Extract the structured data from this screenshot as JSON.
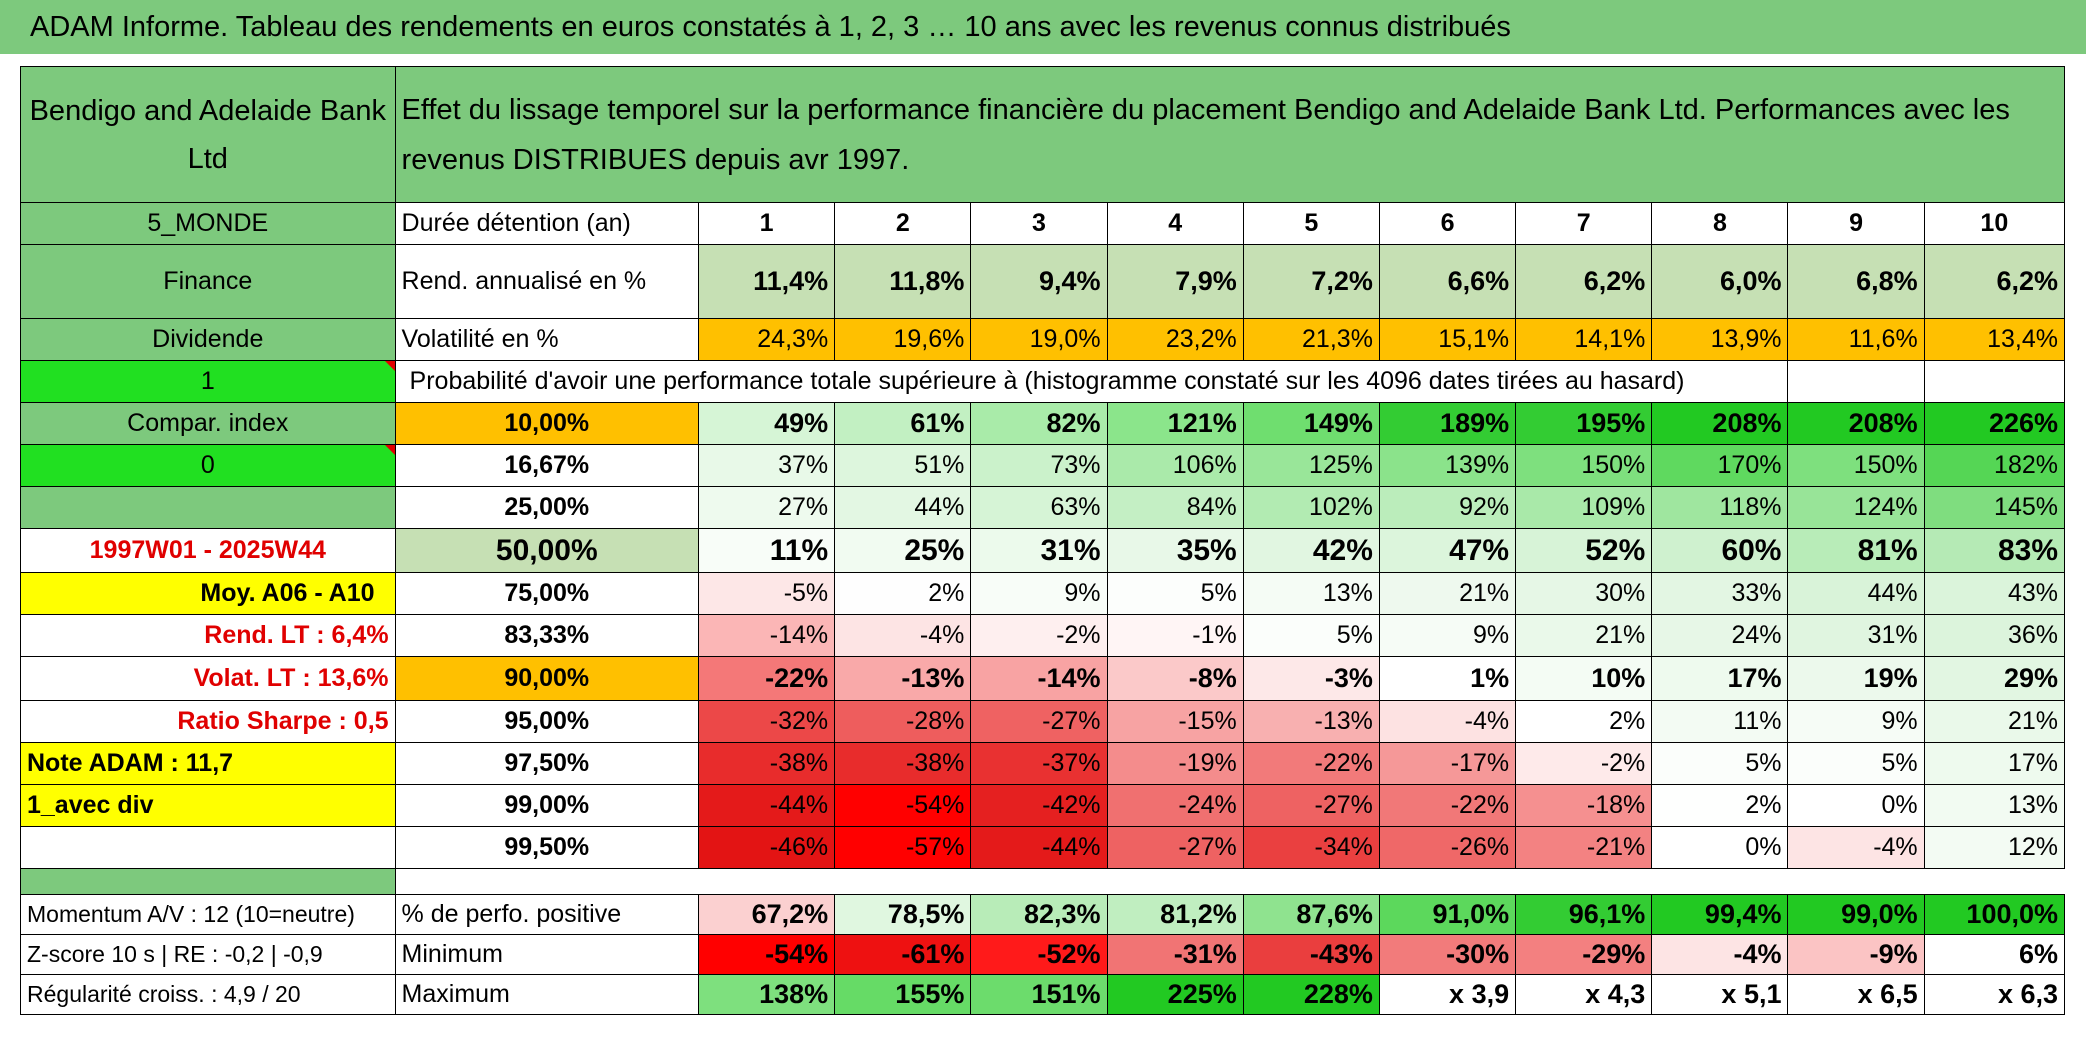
{
  "title": "ADAM Informe. Tableau des rendements en euros constatés à 1, 2, 3 … 10 ans avec les revenus connus distribués",
  "header": {
    "name": "Bendigo and Adelaide Bank Ltd",
    "description": "Effet du lissage temporel sur la performance financière du placement Bendigo and Adelaide Bank Ltd. Performances avec les revenus DISTRIBUES depuis avr 1997."
  },
  "left": {
    "region": "5_MONDE",
    "sector": "Finance",
    "type": "Dividende",
    "val1": "1",
    "compar": "Compar. index",
    "val0": "0",
    "period": "1997W01 - 2025W44",
    "moy": "Moy. A06 - A10",
    "rend_lt": "Rend. LT :   6,4%",
    "volat_lt": "Volat. LT :   13,6%",
    "sharpe": "Ratio Sharpe :   0,5",
    "note": "Note ADAM : 11,7",
    "avec_div": "1_avec div",
    "momentum": "Momentum A/V : 12 (10=neutre)",
    "zscore": "Z-score 10 s | RE : -0,2 | -0,9",
    "regularite": "Régularité croiss. : 4,9 / 20"
  },
  "labels": {
    "duree": "Durée détention (an)",
    "rend": "Rend. annualisé en %",
    "volat": "Volatilité en %",
    "proba": "Probabilité d'avoir une performance totale supérieure à (histogramme constaté sur les 4096 dates tirées au hasard)",
    "positive": "% de perfo. positive",
    "minimum": "Minimum",
    "maximum": "Maximum"
  },
  "years": [
    "1",
    "2",
    "3",
    "4",
    "5",
    "6",
    "7",
    "8",
    "9",
    "10"
  ],
  "rend": [
    "11,4%",
    "11,8%",
    "9,4%",
    "7,9%",
    "7,2%",
    "6,6%",
    "6,2%",
    "6,0%",
    "6,8%",
    "6,2%"
  ],
  "volat": [
    "24,3%",
    "19,6%",
    "19,0%",
    "23,2%",
    "21,3%",
    "15,1%",
    "14,1%",
    "13,9%",
    "11,6%",
    "13,4%"
  ],
  "percentiles": [
    {
      "label": "10,00%",
      "values": [
        "49%",
        "61%",
        "82%",
        "121%",
        "149%",
        "189%",
        "195%",
        "208%",
        "208%",
        "226%"
      ],
      "colors": [
        "#d6f5d6",
        "#c2f0c2",
        "#a9eba9",
        "#8be58b",
        "#6fde6f",
        "#33cc33",
        "#33cc33",
        "#22c922",
        "#22c922",
        "#22c922"
      ]
    },
    {
      "label": "16,67%",
      "values": [
        "37%",
        "51%",
        "73%",
        "106%",
        "125%",
        "139%",
        "150%",
        "170%",
        "150%",
        "182%"
      ],
      "colors": [
        "#e8f9e8",
        "#ddf6dd",
        "#cbf2cb",
        "#aaeaaa",
        "#99e699",
        "#8be38b",
        "#7ee07e",
        "#5fd95f",
        "#7ee07e",
        "#55d655"
      ]
    },
    {
      "label": "25,00%",
      "values": [
        "27%",
        "44%",
        "63%",
        "84%",
        "102%",
        "92%",
        "109%",
        "118%",
        "124%",
        "145%"
      ],
      "colors": [
        "#eefaee",
        "#e3f7e3",
        "#d6f4d6",
        "#c4efc4",
        "#b2ebb2",
        "#bbedbb",
        "#a9e9a9",
        "#9fe69f",
        "#98e498",
        "#7fdd7f"
      ]
    },
    {
      "label": "50,00%",
      "values": [
        "11%",
        "25%",
        "31%",
        "35%",
        "42%",
        "47%",
        "52%",
        "60%",
        "81%",
        "83%"
      ],
      "colors": [
        "#f8fdf8",
        "#f1fbf1",
        "#ecfaec",
        "#e8f8e8",
        "#e1f6e1",
        "#dcf5dc",
        "#d7f3d7",
        "#cff1cf",
        "#b8ecb8",
        "#b5eab5"
      ]
    },
    {
      "label": "75,00%",
      "values": [
        "-5%",
        "2%",
        "9%",
        "5%",
        "13%",
        "21%",
        "30%",
        "33%",
        "44%",
        "43%"
      ],
      "colors": [
        "#fde7e7",
        "#fefefe",
        "#f8fdf8",
        "#fcfefc",
        "#f5fcf5",
        "#eef9ee",
        "#e6f7e6",
        "#e3f6e3",
        "#d9f3d9",
        "#dbf4db"
      ]
    },
    {
      "label": "83,33%",
      "values": [
        "-14%",
        "-4%",
        "-2%",
        "-1%",
        "5%",
        "9%",
        "21%",
        "24%",
        "31%",
        "36%"
      ],
      "colors": [
        "#fbb6b6",
        "#fde4e4",
        "#feefef",
        "#fff5f5",
        "#fbfefb",
        "#f6fcf6",
        "#eaf9ea",
        "#e7f7e7",
        "#e0f5e0",
        "#dcf4dc"
      ]
    },
    {
      "label": "90,00%",
      "values": [
        "-22%",
        "-13%",
        "-14%",
        "-8%",
        "-3%",
        "1%",
        "10%",
        "17%",
        "19%",
        "29%"
      ],
      "colors": [
        "#f47878",
        "#f9a9a9",
        "#f8a3a3",
        "#fbc9c9",
        "#fde8e8",
        "#ffffff",
        "#f4fcf4",
        "#eefaee",
        "#ecf9ec",
        "#e2f6e2"
      ]
    },
    {
      "label": "95,00%",
      "values": [
        "-32%",
        "-28%",
        "-27%",
        "-15%",
        "-13%",
        "-4%",
        "2%",
        "11%",
        "9%",
        "21%"
      ],
      "colors": [
        "#ec4848",
        "#ee5d5d",
        "#ef6262",
        "#f7a3a3",
        "#f8b0b0",
        "#fde2e2",
        "#ffffff",
        "#f3fbf3",
        "#f6fcf6",
        "#eaf9ea"
      ]
    },
    {
      "label": "97,50%",
      "values": [
        "-38%",
        "-38%",
        "-37%",
        "-19%",
        "-22%",
        "-17%",
        "-2%",
        "5%",
        "5%",
        "17%"
      ],
      "colors": [
        "#e82c2c",
        "#e82c2c",
        "#e93131",
        "#f48c8c",
        "#f27a7a",
        "#f59898",
        "#feeaea",
        "#fbfefb",
        "#fbfefb",
        "#eefaee"
      ]
    },
    {
      "label": "99,00%",
      "values": [
        "-44%",
        "-54%",
        "-42%",
        "-24%",
        "-27%",
        "-22%",
        "-18%",
        "2%",
        "0%",
        "13%"
      ],
      "colors": [
        "#e41a1a",
        "#ff0000",
        "#e52020",
        "#f07070",
        "#ee6262",
        "#f17878",
        "#f59090",
        "#fefffe",
        "#ffffff",
        "#f2fbf2"
      ]
    },
    {
      "label": "99,50%",
      "values": [
        "-46%",
        "-57%",
        "-44%",
        "-27%",
        "-34%",
        "-26%",
        "-21%",
        "0%",
        "-4%",
        "12%"
      ],
      "colors": [
        "#e31414",
        "#ff0000",
        "#e41a1a",
        "#ee6262",
        "#ea4040",
        "#ef6868",
        "#f38282",
        "#ffffff",
        "#fde4e4",
        "#f3fbf3"
      ]
    }
  ],
  "positive": {
    "values": [
      "67,2%",
      "78,5%",
      "82,3%",
      "81,2%",
      "87,6%",
      "91,0%",
      "96,1%",
      "99,4%",
      "99,0%",
      "100,0%"
    ],
    "colors": [
      "#fbd0d0",
      "#e0f7e0",
      "#b8ecb8",
      "#c0eec0",
      "#8fe38f",
      "#5cd85c",
      "#33cc33",
      "#22c922",
      "#22c922",
      "#22c922"
    ]
  },
  "minimum": {
    "values": [
      "-54%",
      "-61%",
      "-52%",
      "-31%",
      "-43%",
      "-30%",
      "-29%",
      "-4%",
      "-9%",
      "6%"
    ],
    "colors": [
      "#ff0000",
      "#ee1111",
      "#ff1a1a",
      "#f17474",
      "#ea3e3e",
      "#f27b7b",
      "#f38080",
      "#fde4e4",
      "#fbc4c4",
      "#ffffff"
    ]
  },
  "maximum": {
    "values": [
      "138%",
      "155%",
      "151%",
      "225%",
      "228%",
      "x 3,9",
      "x 4,3",
      "x 5,1",
      "x 6,5",
      "x 6,3"
    ],
    "colors": [
      "#7ee07e",
      "#66db66",
      "#6cdc6c",
      "#22c922",
      "#22c922",
      "#ffffff",
      "#ffffff",
      "#ffffff",
      "#ffffff",
      "#ffffff"
    ]
  }
}
